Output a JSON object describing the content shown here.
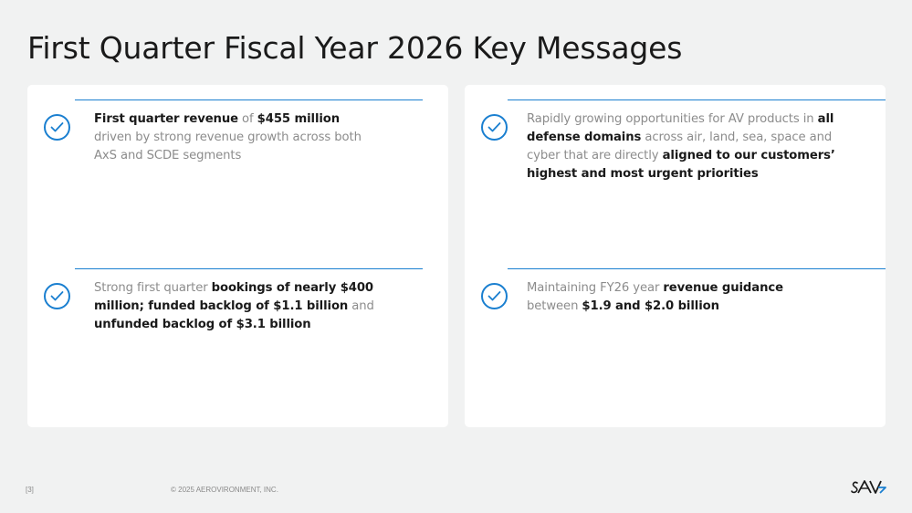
{
  "slide": {
    "title": "First Quarter Fiscal Year 2026 Key Messages",
    "page_number": "[3]",
    "copyright": "© 2025 AEROVIRONMENT, INC.",
    "logo_text": "AV"
  },
  "messages": {
    "m1": {
      "a": "First quarter revenue",
      "b": " of ",
      "c": "$455 million",
      "d": " driven by  strong revenue growth across both AxS and SCDE segments"
    },
    "m2": {
      "a": "Rapidly growing opportunities for AV products in ",
      "b": "all defense domains",
      "c": " across air, land, sea, space and cyber that are directly ",
      "d": "aligned to our customers’ highest and most urgent priorities"
    },
    "m3": {
      "a": "Strong first quarter ",
      "b": "bookings of nearly $400 million; funded backlog of $1.1 billion",
      "c": " and ",
      "d": "unfunded backlog of $3.1 billion"
    },
    "m4": {
      "a": "Maintaining FY26 year ",
      "b": "revenue guidance",
      "c": " between ",
      "d": "$1.9 and $2.0 billion"
    }
  },
  "colors": {
    "accent": "#1a7fd0",
    "body_text": "#8c8c8c",
    "bold_text": "#1a1a1a",
    "background": "#f1f2f2"
  },
  "icons": {
    "bullet": "check-circle-icon",
    "logo": "av-logo"
  }
}
